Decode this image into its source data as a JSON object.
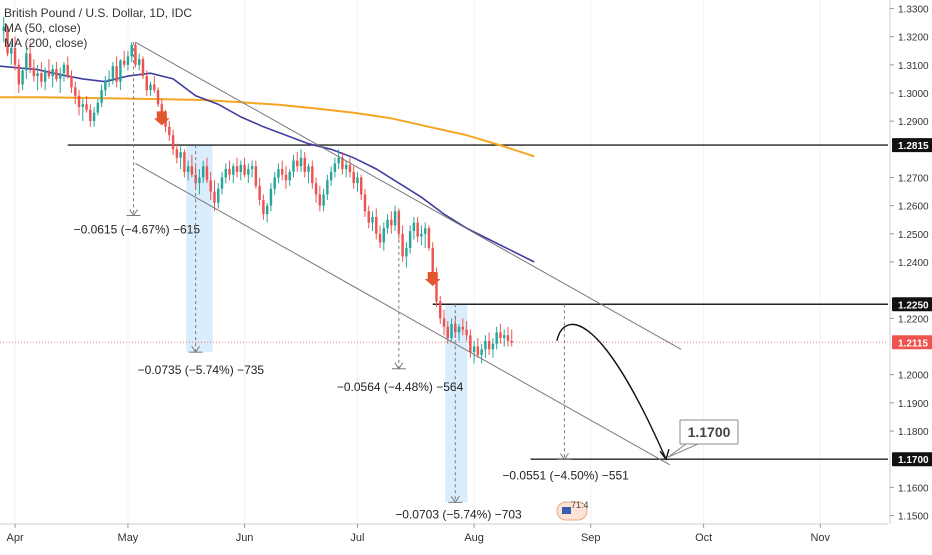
{
  "chart_data": {
    "type": "candlestick",
    "title": "British Pound / U.S. Dollar, 1D, IDC",
    "indicators": [
      "MA (50, close)",
      "MA (200, close)"
    ],
    "ylim": [
      1.147,
      1.333
    ],
    "y_ticks": [
      "1.3300",
      "1.3200",
      "1.3100",
      "1.3000",
      "1.2900",
      "1.2700",
      "1.2600",
      "1.2500",
      "1.2400",
      "1.2200",
      "1.2000",
      "1.1900",
      "1.1800",
      "1.1600",
      "1.1500"
    ],
    "x_ticks": [
      {
        "label": "Apr",
        "day": 0
      },
      {
        "label": "May",
        "day": 30
      },
      {
        "label": "Jun",
        "day": 61
      },
      {
        "label": "Jul",
        "day": 91
      },
      {
        "label": "Aug",
        "day": 122
      },
      {
        "label": "Sep",
        "day": 153
      },
      {
        "label": "Oct",
        "day": 183
      },
      {
        "label": "Nov",
        "day": 214
      }
    ],
    "x_range_days": [
      -4,
      232
    ],
    "price_levels": [
      {
        "value": 1.2815,
        "label": "1.2815",
        "style": "line",
        "x_from_day": 14
      },
      {
        "value": 1.225,
        "label": "1.2250",
        "style": "line",
        "x_from_day": 111
      },
      {
        "value": 1.2115,
        "label": "1.2115",
        "style": "current"
      },
      {
        "value": 1.17,
        "label": "1.1700",
        "style": "line",
        "x_from_day": 137
      }
    ],
    "measurements": [
      {
        "label": "−0.0615 (−4.67%) −615",
        "day": 31.5,
        "from": 1.318,
        "to": 1.2565
      },
      {
        "label": "−0.0735 (−5.74%) −735",
        "day": 48,
        "from": 1.2815,
        "to": 1.208
      },
      {
        "label": "−0.0564 (−4.48%) −564",
        "day": 102,
        "from": 1.2585,
        "to": 1.2021
      },
      {
        "label": "−0.0703 (−5.74%) −703",
        "day": 117,
        "from": 1.225,
        "to": 1.1547
      },
      {
        "label": "−0.0551 (−4.50%) −551",
        "day": 146,
        "from": 1.225,
        "to": 1.1699
      }
    ],
    "target_label": "1.1700",
    "footer_badge": "71:4",
    "channel": {
      "upper": [
        {
          "day": 32,
          "price": 1.318
        },
        {
          "day": 177,
          "price": 1.209
        }
      ],
      "lower": [
        {
          "day": 32,
          "price": 1.275
        },
        {
          "day": 174,
          "price": 1.168
        }
      ]
    },
    "projection": [
      {
        "day": 144,
        "price": 1.212
      },
      {
        "day": 150,
        "price": 1.2205
      },
      {
        "day": 173,
        "price": 1.17
      }
    ],
    "ma50": [
      [
        -4,
        1.3095
      ],
      [
        0,
        1.309
      ],
      [
        6,
        1.3083
      ],
      [
        12,
        1.3065
      ],
      [
        18,
        1.305
      ],
      [
        24,
        1.304
      ],
      [
        30,
        1.306
      ],
      [
        36,
        1.307
      ],
      [
        42,
        1.305
      ],
      [
        48,
        1.299
      ],
      [
        54,
        1.296
      ],
      [
        60,
        1.2915
      ],
      [
        66,
        1.288
      ],
      [
        72,
        1.285
      ],
      [
        78,
        1.282
      ],
      [
        84,
        1.28
      ],
      [
        90,
        1.277
      ],
      [
        96,
        1.273
      ],
      [
        102,
        1.268
      ],
      [
        108,
        1.263
      ],
      [
        114,
        1.257
      ],
      [
        120,
        1.252
      ],
      [
        126,
        1.248
      ],
      [
        132,
        1.244
      ],
      [
        138,
        1.24
      ]
    ],
    "ma200": [
      [
        -4,
        1.2985
      ],
      [
        6,
        1.2985
      ],
      [
        16,
        1.2983
      ],
      [
        30,
        1.298
      ],
      [
        40,
        1.2978
      ],
      [
        50,
        1.2975
      ],
      [
        60,
        1.2967
      ],
      [
        70,
        1.2958
      ],
      [
        80,
        1.2945
      ],
      [
        90,
        1.293
      ],
      [
        100,
        1.291
      ],
      [
        110,
        1.288
      ],
      [
        120,
        1.285
      ],
      [
        130,
        1.281
      ],
      [
        138,
        1.2775
      ]
    ],
    "candles": [
      [
        -3,
        1.322,
        1.327,
        1.318,
        1.3235
      ],
      [
        -2,
        1.3235,
        1.324,
        1.313,
        1.314
      ],
      [
        -1,
        1.314,
        1.318,
        1.31,
        1.316
      ],
      [
        0,
        1.316,
        1.32,
        1.308,
        1.31
      ],
      [
        1,
        1.31,
        1.312,
        1.3,
        1.303
      ],
      [
        2,
        1.303,
        1.309,
        1.301,
        1.308
      ],
      [
        3,
        1.308,
        1.316,
        1.305,
        1.314
      ],
      [
        4,
        1.314,
        1.318,
        1.307,
        1.309
      ],
      [
        5,
        1.309,
        1.312,
        1.304,
        1.306
      ],
      [
        6,
        1.306,
        1.31,
        1.301,
        1.307
      ],
      [
        7,
        1.307,
        1.311,
        1.302,
        1.304
      ],
      [
        8,
        1.304,
        1.309,
        1.301,
        1.308
      ],
      [
        9,
        1.308,
        1.312,
        1.305,
        1.306
      ],
      [
        10,
        1.306,
        1.31,
        1.302,
        1.3085
      ],
      [
        11,
        1.3085,
        1.311,
        1.304,
        1.305
      ],
      [
        12,
        1.305,
        1.309,
        1.3,
        1.307
      ],
      [
        13,
        1.307,
        1.311,
        1.304,
        1.31
      ],
      [
        14,
        1.31,
        1.313,
        1.305,
        1.306
      ],
      [
        15,
        1.306,
        1.308,
        1.3,
        1.302
      ],
      [
        16,
        1.302,
        1.304,
        1.296,
        1.299
      ],
      [
        17,
        1.299,
        1.301,
        1.292,
        1.295
      ],
      [
        18,
        1.295,
        1.298,
        1.29,
        1.296
      ],
      [
        19,
        1.296,
        1.299,
        1.293,
        1.294
      ],
      [
        20,
        1.294,
        1.296,
        1.288,
        1.29
      ],
      [
        21,
        1.29,
        1.295,
        1.288,
        1.293
      ],
      [
        22,
        1.293,
        1.298,
        1.292,
        1.2965
      ],
      [
        23,
        1.2965,
        1.303,
        1.295,
        1.301
      ],
      [
        24,
        1.301,
        1.306,
        1.299,
        1.3045
      ],
      [
        25,
        1.3045,
        1.308,
        1.302,
        1.305
      ],
      [
        26,
        1.305,
        1.311,
        1.303,
        1.3095
      ],
      [
        27,
        1.3095,
        1.313,
        1.302,
        1.304
      ],
      [
        28,
        1.304,
        1.312,
        1.301,
        1.3115
      ],
      [
        29,
        1.3115,
        1.315,
        1.309,
        1.31
      ],
      [
        30,
        1.31,
        1.315,
        1.308,
        1.313
      ],
      [
        31,
        1.313,
        1.318,
        1.311,
        1.317
      ],
      [
        32,
        1.317,
        1.318,
        1.309,
        1.31
      ],
      [
        33,
        1.31,
        1.314,
        1.308,
        1.312
      ],
      [
        34,
        1.312,
        1.313,
        1.305,
        1.306
      ],
      [
        35,
        1.306,
        1.308,
        1.299,
        1.301
      ],
      [
        36,
        1.301,
        1.304,
        1.299,
        1.303
      ],
      [
        37,
        1.303,
        1.306,
        1.3,
        1.301
      ],
      [
        38,
        1.301,
        1.302,
        1.295,
        1.296
      ],
      [
        39,
        1.296,
        1.298,
        1.29,
        1.292
      ],
      [
        40,
        1.292,
        1.294,
        1.286,
        1.288
      ],
      [
        41,
        1.288,
        1.29,
        1.283,
        1.285
      ],
      [
        42,
        1.285,
        1.287,
        1.278,
        1.28
      ],
      [
        43,
        1.28,
        1.282,
        1.275,
        1.277
      ],
      [
        44,
        1.277,
        1.281,
        1.273,
        1.279
      ],
      [
        45,
        1.279,
        1.28,
        1.27,
        1.272
      ],
      [
        46,
        1.272,
        1.276,
        1.269,
        1.274
      ],
      [
        47,
        1.274,
        1.278,
        1.27,
        1.271
      ],
      [
        48,
        1.271,
        1.274,
        1.266,
        1.268
      ],
      [
        49,
        1.268,
        1.273,
        1.264,
        1.27
      ],
      [
        50,
        1.27,
        1.276,
        1.268,
        1.274
      ],
      [
        51,
        1.274,
        1.277,
        1.268,
        1.269
      ],
      [
        52,
        1.269,
        1.272,
        1.262,
        1.265
      ],
      [
        53,
        1.265,
        1.269,
        1.258,
        1.261
      ],
      [
        54,
        1.261,
        1.268,
        1.259,
        1.266
      ],
      [
        55,
        1.266,
        1.272,
        1.264,
        1.27
      ],
      [
        56,
        1.27,
        1.275,
        1.268,
        1.273
      ],
      [
        57,
        1.273,
        1.276,
        1.269,
        1.271
      ],
      [
        58,
        1.271,
        1.275,
        1.268,
        1.274
      ],
      [
        59,
        1.274,
        1.277,
        1.27,
        1.272
      ],
      [
        60,
        1.272,
        1.276,
        1.269,
        1.2745
      ],
      [
        61,
        1.2745,
        1.277,
        1.27,
        1.271
      ],
      [
        62,
        1.271,
        1.275,
        1.268,
        1.273
      ],
      [
        63,
        1.273,
        1.276,
        1.27,
        1.274
      ],
      [
        64,
        1.274,
        1.276,
        1.266,
        1.267
      ],
      [
        65,
        1.267,
        1.27,
        1.26,
        1.262
      ],
      [
        66,
        1.262,
        1.264,
        1.255,
        1.257
      ],
      [
        67,
        1.257,
        1.261,
        1.254,
        1.26
      ],
      [
        68,
        1.26,
        1.268,
        1.258,
        1.266
      ],
      [
        69,
        1.266,
        1.272,
        1.264,
        1.27
      ],
      [
        70,
        1.27,
        1.275,
        1.268,
        1.273
      ],
      [
        71,
        1.273,
        1.276,
        1.269,
        1.271
      ],
      [
        72,
        1.271,
        1.274,
        1.266,
        1.269
      ],
      [
        73,
        1.269,
        1.273,
        1.267,
        1.272
      ],
      [
        74,
        1.272,
        1.278,
        1.27,
        1.276
      ],
      [
        75,
        1.276,
        1.279,
        1.272,
        1.274
      ],
      [
        76,
        1.274,
        1.28,
        1.272,
        1.277
      ],
      [
        77,
        1.277,
        1.279,
        1.27,
        1.272
      ],
      [
        78,
        1.272,
        1.275,
        1.268,
        1.274
      ],
      [
        79,
        1.274,
        1.276,
        1.266,
        1.268
      ],
      [
        80,
        1.268,
        1.27,
        1.261,
        1.264
      ],
      [
        81,
        1.264,
        1.267,
        1.258,
        1.26
      ],
      [
        82,
        1.26,
        1.266,
        1.258,
        1.264
      ],
      [
        83,
        1.264,
        1.271,
        1.262,
        1.269
      ],
      [
        84,
        1.269,
        1.274,
        1.267,
        1.272
      ],
      [
        85,
        1.272,
        1.277,
        1.27,
        1.275
      ],
      [
        86,
        1.275,
        1.28,
        1.273,
        1.277
      ],
      [
        87,
        1.277,
        1.279,
        1.271,
        1.273
      ],
      [
        88,
        1.273,
        1.276,
        1.27,
        1.2745
      ],
      [
        89,
        1.2745,
        1.277,
        1.27,
        1.272
      ],
      [
        90,
        1.272,
        1.274,
        1.266,
        1.268
      ],
      [
        91,
        1.268,
        1.272,
        1.265,
        1.27
      ],
      [
        92,
        1.27,
        1.271,
        1.262,
        1.264
      ],
      [
        93,
        1.264,
        1.266,
        1.256,
        1.258
      ],
      [
        94,
        1.258,
        1.26,
        1.252,
        1.254
      ],
      [
        95,
        1.254,
        1.258,
        1.251,
        1.256
      ],
      [
        96,
        1.256,
        1.259,
        1.248,
        1.25
      ],
      [
        97,
        1.25,
        1.253,
        1.245,
        1.247
      ],
      [
        98,
        1.247,
        1.254,
        1.244,
        1.252
      ],
      [
        99,
        1.252,
        1.257,
        1.25,
        1.255
      ],
      [
        100,
        1.255,
        1.258,
        1.25,
        1.253
      ],
      [
        101,
        1.253,
        1.26,
        1.251,
        1.258
      ],
      [
        102,
        1.258,
        1.259,
        1.248,
        1.25
      ],
      [
        103,
        1.25,
        1.253,
        1.24,
        1.242
      ],
      [
        104,
        1.242,
        1.247,
        1.238,
        1.245
      ],
      [
        105,
        1.245,
        1.253,
        1.243,
        1.251
      ],
      [
        106,
        1.251,
        1.256,
        1.248,
        1.254
      ],
      [
        107,
        1.254,
        1.256,
        1.247,
        1.249
      ],
      [
        108,
        1.249,
        1.253,
        1.246,
        1.25
      ],
      [
        109,
        1.25,
        1.254,
        1.245,
        1.252
      ],
      [
        110,
        1.252,
        1.253,
        1.244,
        1.245
      ],
      [
        111,
        1.245,
        1.247,
        1.234,
        1.236
      ],
      [
        112,
        1.236,
        1.238,
        1.224,
        1.226
      ],
      [
        113,
        1.226,
        1.228,
        1.218,
        1.22
      ],
      [
        114,
        1.22,
        1.223,
        1.214,
        1.217
      ],
      [
        115,
        1.217,
        1.219,
        1.211,
        1.213
      ],
      [
        116,
        1.213,
        1.22,
        1.212,
        1.218
      ],
      [
        117,
        1.218,
        1.221,
        1.213,
        1.215
      ],
      [
        118,
        1.215,
        1.218,
        1.212,
        1.217
      ],
      [
        119,
        1.217,
        1.22,
        1.214,
        1.216
      ],
      [
        120,
        1.216,
        1.219,
        1.212,
        1.214
      ],
      [
        121,
        1.214,
        1.216,
        1.206,
        1.208
      ],
      [
        122,
        1.208,
        1.212,
        1.204,
        1.21
      ],
      [
        123,
        1.21,
        1.213,
        1.206,
        1.207
      ],
      [
        124,
        1.207,
        1.211,
        1.204,
        1.209
      ],
      [
        125,
        1.209,
        1.214,
        1.206,
        1.212
      ],
      [
        126,
        1.212,
        1.215,
        1.207,
        1.209
      ],
      [
        127,
        1.209,
        1.213,
        1.206,
        1.211
      ],
      [
        128,
        1.211,
        1.217,
        1.209,
        1.215
      ],
      [
        129,
        1.215,
        1.218,
        1.211,
        1.213
      ],
      [
        130,
        1.213,
        1.216,
        1.21,
        1.214
      ],
      [
        131,
        1.214,
        1.217,
        1.21,
        1.212
      ],
      [
        132,
        1.212,
        1.216,
        1.21,
        1.2115
      ]
    ]
  }
}
